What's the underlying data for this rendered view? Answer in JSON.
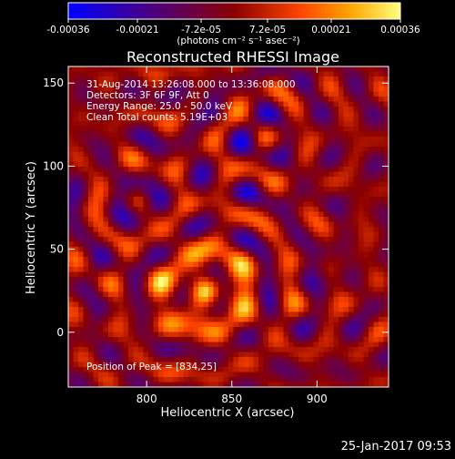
{
  "chart_data": {
    "type": "heatmap",
    "title": "Reconstructed RHESSI Image",
    "xlabel": "Heliocentric X (arcsec)",
    "ylabel": "Heliocentric Y (arcsec)",
    "xlim": [
      754,
      942
    ],
    "ylim": [
      -33,
      160
    ],
    "x_ticks": [
      800,
      850,
      900
    ],
    "y_ticks": [
      0,
      50,
      100,
      150
    ],
    "colorbar": {
      "tick_labels": [
        "-0.00036",
        "-0.00021",
        "-7.2e-05",
        "7.2e-05",
        "0.00021",
        "0.00036"
      ],
      "tick_values": [
        -0.00036,
        -0.00021,
        -7.2e-05,
        7.2e-05,
        0.00021,
        0.00036
      ],
      "range": [
        -0.00036,
        0.00036
      ],
      "units": "(photons cm⁻² s⁻¹ asec⁻²)",
      "colors": [
        "#0000ff",
        "#4b0082",
        "#8b0000",
        "#ff4500",
        "#ffa500",
        "#ffff80"
      ]
    },
    "annotations": [
      "31-Aug-2014 13:26:08.000 to 13:36:08.000",
      "Detectors: 3F 6F 9F, Att 0",
      "Energy Range: 25.0 - 50.0 keV",
      "Clean    Total counts: 5.19E+03"
    ],
    "peak_label": "Position of Peak = [834,25]",
    "peak": [
      834,
      25
    ],
    "grid": false
  },
  "footer": {
    "timestamp": "25-Jan-2017 09:53"
  }
}
